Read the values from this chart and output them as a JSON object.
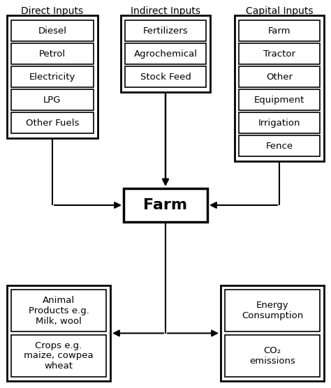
{
  "bg_color": "#ffffff",
  "box_edge_color": "#000000",
  "box_face_color": "#ffffff",
  "text_color": "#000000",
  "arrow_color": "#000000",
  "direct_inputs_label": "Direct Inputs",
  "indirect_inputs_label": "Indirect Inputs",
  "capital_inputs_label": "Capital Inputs",
  "farm_label": "Farm",
  "direct_items": [
    "Diesel",
    "Petrol",
    "Electricity",
    "LPG",
    "Other Fuels"
  ],
  "indirect_items": [
    "Fertilizers",
    "Agrochemical",
    "Stock Feed"
  ],
  "capital_items": [
    "Farm",
    "Tractor",
    "Other",
    "Equipment",
    "Irrigation",
    "Fence"
  ],
  "output_left_items": [
    "Animal\nProducts e.g.\nMilk, wool",
    "Crops e.g.\nmaize, cowpea\nwheat"
  ],
  "output_right_items": [
    "Energy\nConsumption",
    "CO₂\nemissions"
  ],
  "figw": 4.74,
  "figh": 5.56,
  "dpi": 100
}
